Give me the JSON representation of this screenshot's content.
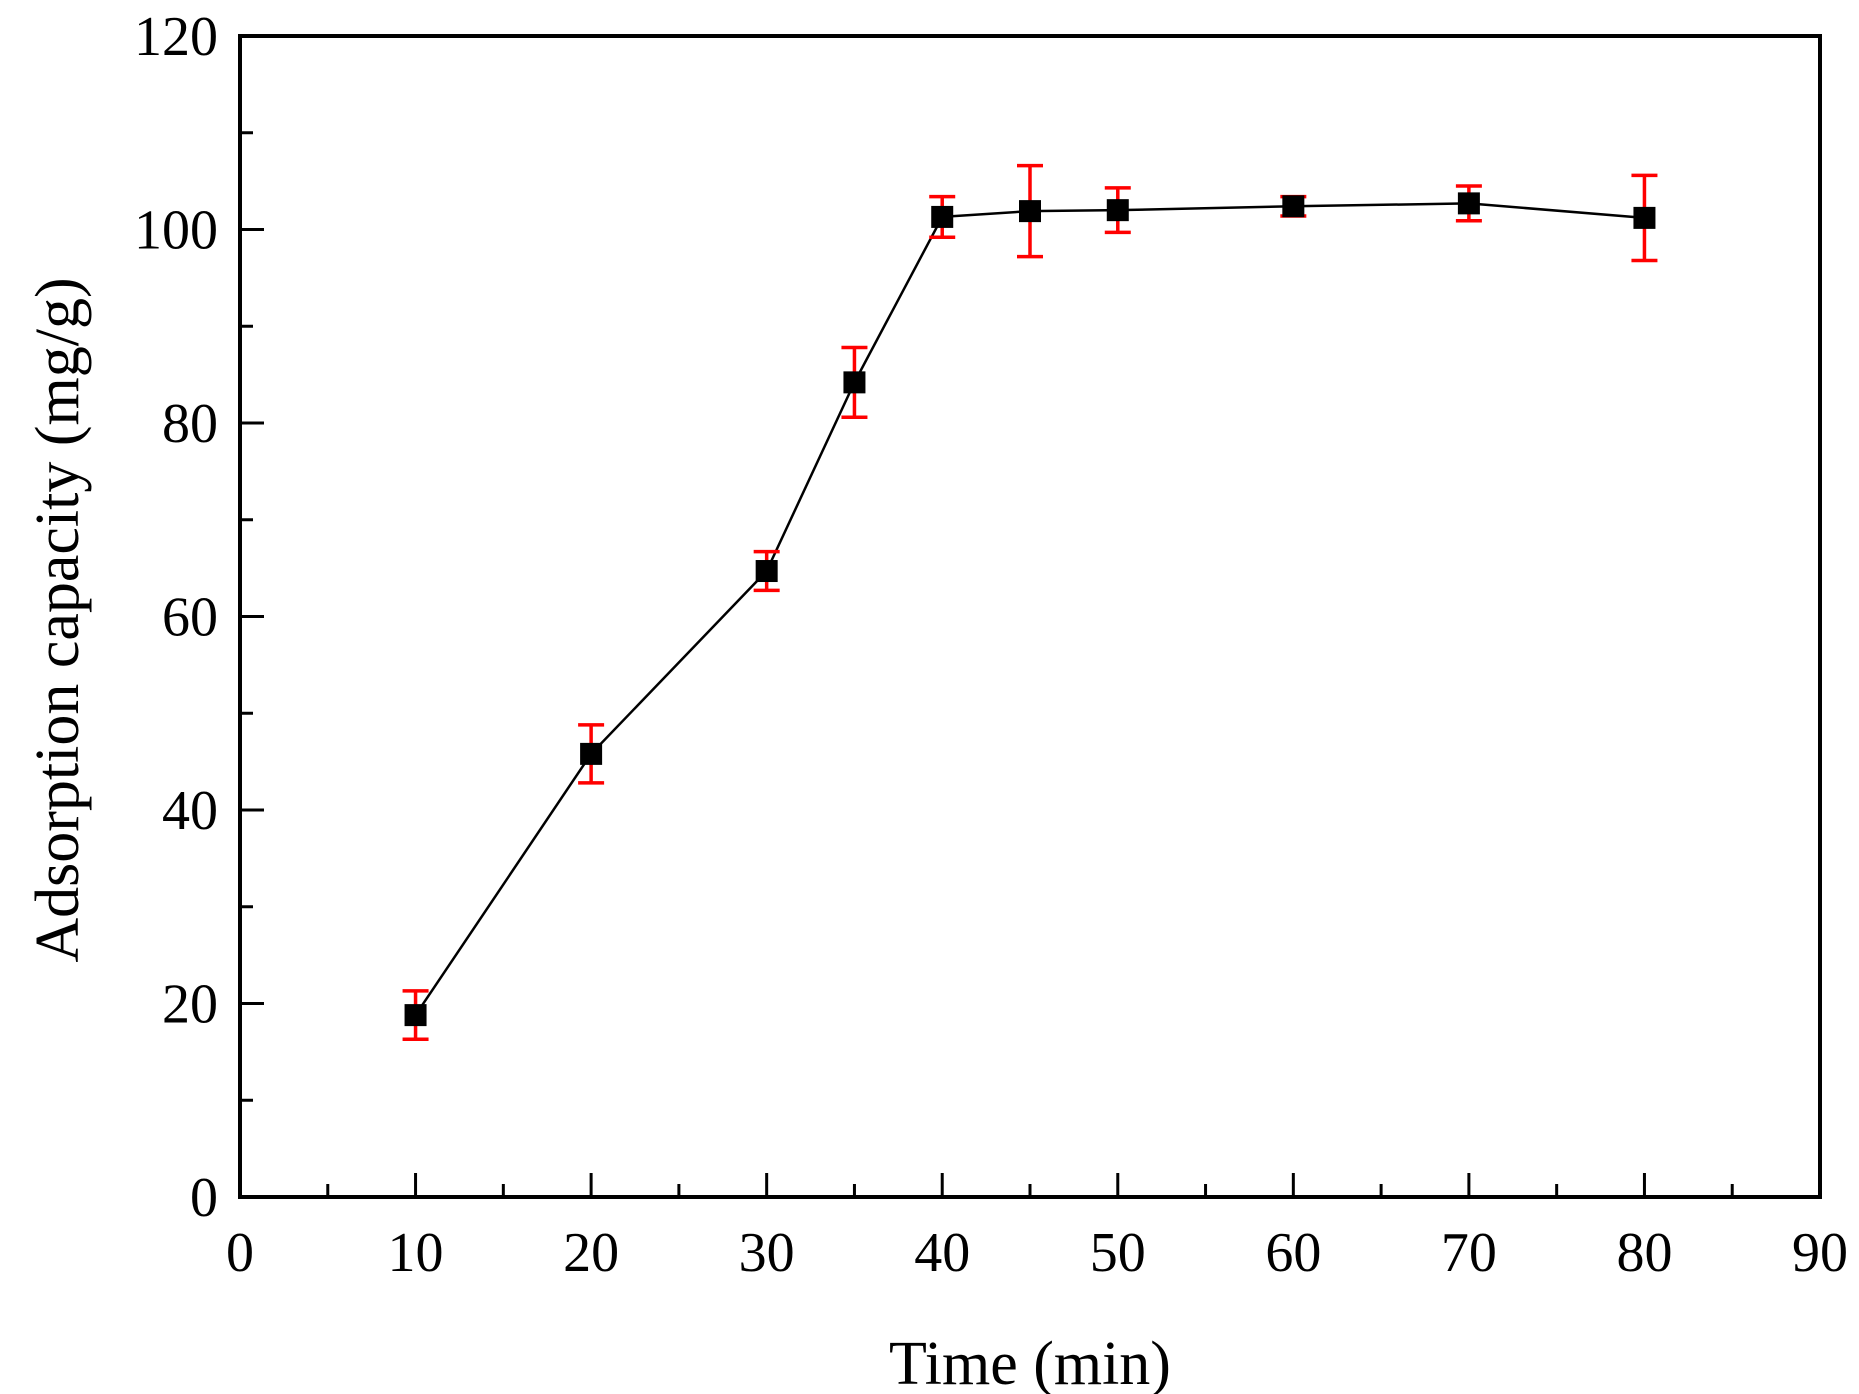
{
  "chart_data": {
    "type": "line",
    "title": "",
    "xlabel": "Time (min)",
    "ylabel": "Adsorption capacity (mg/g)",
    "xlim": [
      0,
      90
    ],
    "ylim": [
      0,
      120
    ],
    "x_ticks": [
      0,
      10,
      20,
      30,
      40,
      50,
      60,
      70,
      80,
      90
    ],
    "y_ticks": [
      0,
      20,
      40,
      60,
      80,
      100,
      120
    ],
    "x_minor_step": 5,
    "y_minor_step": 10,
    "grid": false,
    "legend": null,
    "series": [
      {
        "name": "Adsorption capacity",
        "marker": "square",
        "line_color": "#000000",
        "marker_color": "#000000",
        "error_bar_color": "#ff0000",
        "points": [
          {
            "x": 10,
            "y": 18.8,
            "err": 2.5
          },
          {
            "x": 20,
            "y": 45.8,
            "err": 3.0
          },
          {
            "x": 30,
            "y": 64.7,
            "err": 2.0
          },
          {
            "x": 35,
            "y": 84.2,
            "err": 3.6
          },
          {
            "x": 40,
            "y": 101.3,
            "err": 2.1
          },
          {
            "x": 45,
            "y": 101.9,
            "err": 4.7
          },
          {
            "x": 50,
            "y": 102.0,
            "err": 2.3
          },
          {
            "x": 60,
            "y": 102.4,
            "err": 1.0
          },
          {
            "x": 70,
            "y": 102.7,
            "err": 1.8
          },
          {
            "x": 80,
            "y": 101.2,
            "err": 4.4
          }
        ]
      }
    ]
  }
}
